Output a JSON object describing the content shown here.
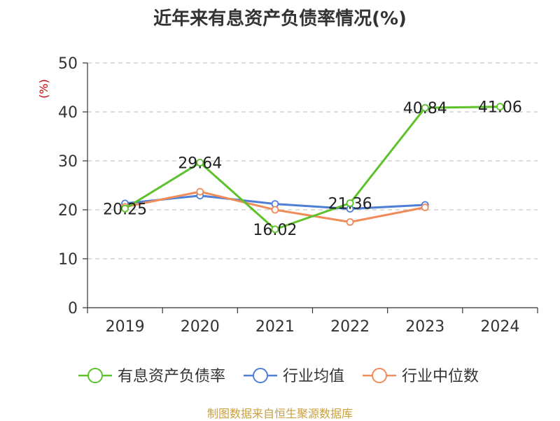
{
  "chart_data": {
    "type": "line",
    "title": "近年来有息资产负债率情况(%)",
    "ylabel": "(%)",
    "xlabel": "",
    "categories": [
      "2019",
      "2020",
      "2021",
      "2022",
      "2023",
      "2024"
    ],
    "ylim": [
      0,
      50
    ],
    "yticks": [
      0,
      10,
      20,
      30,
      40,
      50
    ],
    "grid": true,
    "legend_position": "bottom",
    "series": [
      {
        "name": "有息资产负债率",
        "color": "#5cc12a",
        "values": [
          20.25,
          29.64,
          16.02,
          21.36,
          40.84,
          41.06
        ],
        "labels": [
          "20.25",
          "29.64",
          "16.02",
          "21.36",
          "40.84",
          "41.06"
        ]
      },
      {
        "name": "行业均值",
        "color": "#4e7fd7",
        "values": [
          21.3,
          22.9,
          21.2,
          20.2,
          21.0,
          null
        ]
      },
      {
        "name": "行业中位数",
        "color": "#f08c5a",
        "values": [
          20.6,
          23.7,
          20.0,
          17.5,
          20.5,
          null
        ]
      }
    ]
  },
  "unit_color": "#cc0000",
  "source": {
    "text": "制图数据来自恒生聚源数据库",
    "color": "#c8a040"
  }
}
